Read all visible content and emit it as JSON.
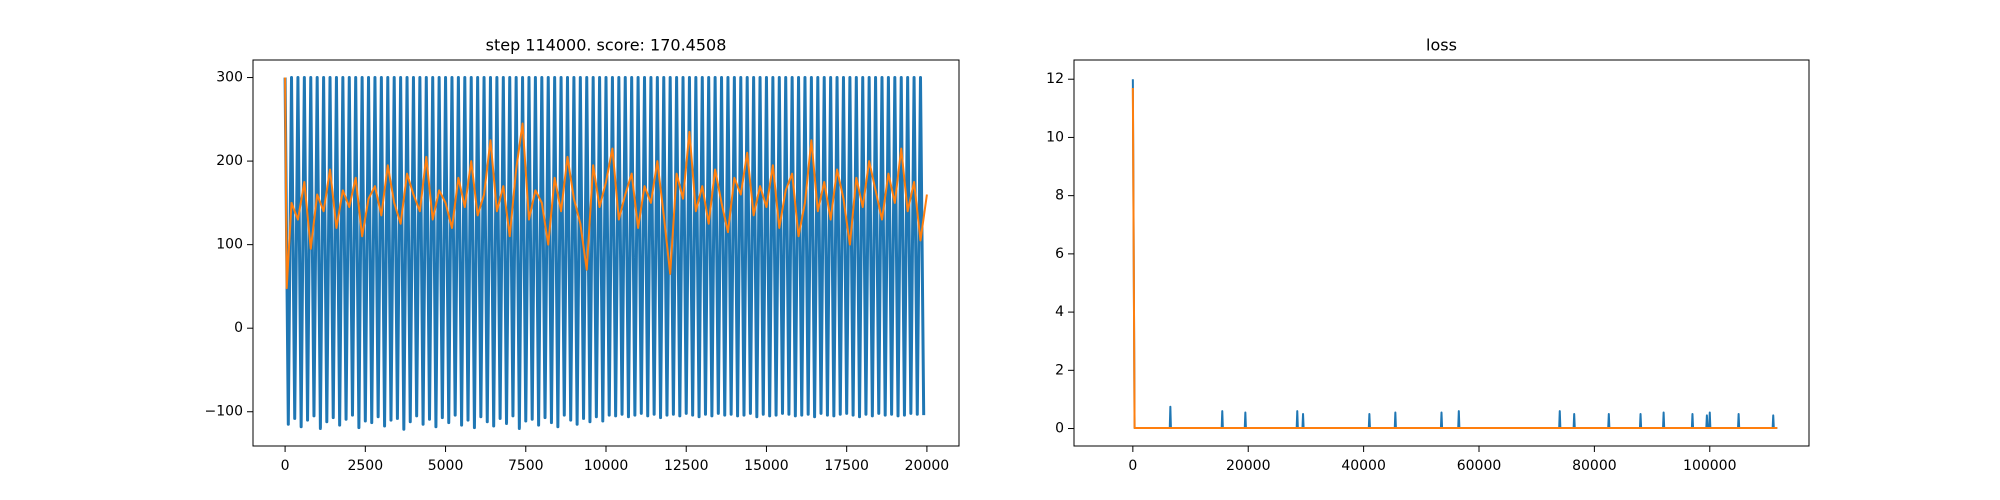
{
  "chart_data": [
    {
      "type": "line",
      "title": "step 114000. score: 170.4508",
      "xlim": [
        -1000,
        21000
      ],
      "ylim": [
        -141,
        321
      ],
      "xticks": [
        0,
        2500,
        5000,
        7500,
        10000,
        12500,
        15000,
        17500,
        20000
      ],
      "yticks": [
        {
          "value": -100,
          "label": "−100"
        },
        0,
        100,
        200,
        300
      ],
      "series": [
        {
          "color": "#1f77b4",
          "x": [
            0,
            100,
            200,
            300,
            400,
            500,
            600,
            700,
            800,
            900,
            1000,
            1100,
            1200,
            1300,
            1400,
            1500,
            1600,
            1700,
            1800,
            1900,
            2000,
            2100,
            2200,
            2300,
            2400,
            2500,
            2600,
            2700,
            2800,
            2900,
            3000,
            3100,
            3200,
            3300,
            3400,
            3500,
            3600,
            3700,
            3800,
            3900,
            4000,
            4100,
            4200,
            4300,
            4400,
            4500,
            4600,
            4700,
            4800,
            4900,
            5000,
            5100,
            5200,
            5300,
            5400,
            5500,
            5600,
            5700,
            5800,
            5900,
            6000,
            6100,
            6200,
            6300,
            6400,
            6500,
            6600,
            6700,
            6800,
            6900,
            7000,
            7100,
            7200,
            7300,
            7400,
            7500,
            7600,
            7700,
            7800,
            7900,
            8000,
            8100,
            8200,
            8300,
            8400,
            8500,
            8600,
            8700,
            8800,
            8900,
            9000,
            9100,
            9200,
            9300,
            9400,
            9500,
            9600,
            9700,
            9800,
            9900,
            10000,
            10100,
            10200,
            10300,
            10400,
            10500,
            10600,
            10700,
            10800,
            10900,
            11000,
            11100,
            11200,
            11300,
            11400,
            11500,
            11600,
            11700,
            11800,
            11900,
            12000,
            12100,
            12200,
            12300,
            12400,
            12500,
            12600,
            12700,
            12800,
            12900,
            13000,
            13100,
            13200,
            13300,
            13400,
            13500,
            13600,
            13700,
            13800,
            13900,
            14000,
            14100,
            14200,
            14300,
            14400,
            14500,
            14600,
            14700,
            14800,
            14900,
            15000,
            15100,
            15200,
            15300,
            15400,
            15500,
            15600,
            15700,
            15800,
            15900,
            16000,
            16100,
            16200,
            16300,
            16400,
            16500,
            16600,
            16700,
            16800,
            16900,
            17000,
            17100,
            17200,
            17300,
            17400,
            17500,
            17600,
            17700,
            17800,
            17900,
            18000,
            18100,
            18200,
            18300,
            18400,
            18500,
            18600,
            18700,
            18800,
            18900,
            19000,
            19100,
            19200,
            19300,
            19400,
            19500,
            19600,
            19700,
            19800,
            19900
          ],
          "values": [
            300,
            -115,
            300,
            -108,
            300,
            -118,
            300,
            -110,
            300,
            -105,
            300,
            -120,
            300,
            -112,
            300,
            -107,
            300,
            -116,
            300,
            -109,
            300,
            -104,
            300,
            -119,
            300,
            -111,
            300,
            -113,
            300,
            -106,
            300,
            -117,
            300,
            -110,
            300,
            -108,
            300,
            -121,
            300,
            -112,
            300,
            -105,
            300,
            -115,
            300,
            -109,
            300,
            -118,
            300,
            -107,
            300,
            -113,
            300,
            -104,
            300,
            -116,
            300,
            -110,
            300,
            -119,
            300,
            -106,
            300,
            -112,
            300,
            -117,
            300,
            -108,
            300,
            -114,
            300,
            -105,
            300,
            -120,
            300,
            -111,
            300,
            -109,
            300,
            -116,
            300,
            -107,
            300,
            -113,
            300,
            -118,
            300,
            -104,
            300,
            -110,
            300,
            -115,
            300,
            -108,
            300,
            -112,
            300,
            -106,
            300,
            -111,
            300,
            -104,
            300,
            -105,
            300,
            -103,
            300,
            -106,
            300,
            -104,
            300,
            -102,
            300,
            -105,
            300,
            -103,
            300,
            -107,
            300,
            -104,
            300,
            -103,
            300,
            -105,
            300,
            -102,
            300,
            -104,
            300,
            -106,
            300,
            -103,
            300,
            -105,
            300,
            -102,
            300,
            -104,
            300,
            -103,
            300,
            -105,
            300,
            -104,
            300,
            -102,
            300,
            -106,
            300,
            -103,
            300,
            -105,
            300,
            -104,
            300,
            -102,
            300,
            -103,
            300,
            -105,
            300,
            -104,
            300,
            -103,
            300,
            -106,
            300,
            -102,
            300,
            -104,
            300,
            -105,
            300,
            -103,
            300,
            -102,
            300,
            -104,
            300,
            -106,
            300,
            -103,
            300,
            -105,
            300,
            -102,
            300,
            -104,
            300,
            -103,
            300,
            -105,
            300,
            -104,
            300,
            -102,
            300,
            -103,
            300,
            -104
          ]
        },
        {
          "color": "#ff7f0e",
          "x": [
            0,
            50,
            200,
            400,
            600,
            800,
            1000,
            1200,
            1400,
            1600,
            1800,
            2000,
            2200,
            2400,
            2600,
            2800,
            3000,
            3200,
            3400,
            3600,
            3800,
            4000,
            4200,
            4400,
            4600,
            4800,
            5000,
            5200,
            5400,
            5600,
            5800,
            6000,
            6200,
            6400,
            6600,
            6800,
            7000,
            7200,
            7400,
            7600,
            7800,
            8000,
            8200,
            8400,
            8600,
            8800,
            9000,
            9200,
            9400,
            9600,
            9800,
            10000,
            10200,
            10400,
            10600,
            10800,
            11000,
            11200,
            11400,
            11600,
            11800,
            12000,
            12200,
            12400,
            12600,
            12800,
            13000,
            13200,
            13400,
            13600,
            13800,
            14000,
            14200,
            14400,
            14600,
            14800,
            15000,
            15200,
            15400,
            15600,
            15800,
            16000,
            16200,
            16400,
            16600,
            16800,
            17000,
            17200,
            17400,
            17600,
            17800,
            18000,
            18200,
            18400,
            18600,
            18800,
            19000,
            19200,
            19400,
            19600,
            19800,
            20000
          ],
          "values": [
            300,
            48,
            150,
            130,
            175,
            95,
            160,
            140,
            190,
            120,
            165,
            145,
            180,
            110,
            155,
            170,
            135,
            195,
            150,
            125,
            185,
            160,
            140,
            205,
            130,
            165,
            150,
            120,
            180,
            145,
            200,
            135,
            160,
            225,
            140,
            170,
            110,
            190,
            245,
            130,
            165,
            150,
            100,
            180,
            140,
            205,
            155,
            125,
            70,
            195,
            145,
            175,
            215,
            130,
            160,
            185,
            120,
            170,
            150,
            200,
            135,
            65,
            185,
            155,
            235,
            140,
            170,
            125,
            190,
            150,
            115,
            180,
            160,
            210,
            135,
            170,
            145,
            195,
            120,
            165,
            185,
            110,
            150,
            225,
            140,
            175,
            130,
            190,
            155,
            100,
            180,
            145,
            200,
            165,
            130,
            185,
            150,
            215,
            140,
            175,
            105,
            160
          ]
        }
      ]
    },
    {
      "type": "line",
      "title": "loss",
      "xlim": [
        -10200,
        117200
      ],
      "ylim": [
        -0.6,
        12.66
      ],
      "xticks": [
        0,
        20000,
        40000,
        60000,
        80000,
        100000
      ],
      "yticks": [
        0,
        2,
        4,
        6,
        8,
        10,
        12
      ],
      "series": [
        {
          "color": "#1f77b4",
          "x": [
            0,
            300,
            6400,
            6500,
            6600,
            15400,
            15500,
            15600,
            19400,
            19500,
            19600,
            28400,
            28500,
            28600,
            29400,
            29500,
            29600,
            40900,
            41000,
            41100,
            45400,
            45500,
            45600,
            53400,
            53500,
            53600,
            56400,
            56500,
            56600,
            73900,
            74000,
            74100,
            76400,
            76500,
            76600,
            82400,
            82500,
            82600,
            87900,
            88000,
            88100,
            91900,
            92000,
            92100,
            96900,
            97000,
            97100,
            99400,
            99500,
            99600,
            99900,
            100000,
            100100,
            104900,
            105000,
            105100,
            110900,
            111000,
            111100,
            111700
          ],
          "values": [
            12.0,
            0.02,
            0.02,
            0.75,
            0.02,
            0.02,
            0.6,
            0.02,
            0.02,
            0.55,
            0.02,
            0.02,
            0.6,
            0.02,
            0.02,
            0.5,
            0.02,
            0.02,
            0.5,
            0.02,
            0.02,
            0.55,
            0.02,
            0.02,
            0.55,
            0.02,
            0.02,
            0.6,
            0.02,
            0.02,
            0.6,
            0.02,
            0.02,
            0.5,
            0.02,
            0.02,
            0.5,
            0.02,
            0.02,
            0.5,
            0.02,
            0.02,
            0.55,
            0.02,
            0.02,
            0.5,
            0.02,
            0.02,
            0.45,
            0.02,
            0.02,
            0.55,
            0.02,
            0.02,
            0.5,
            0.02,
            0.02,
            0.45,
            0.02,
            0.02
          ]
        },
        {
          "color": "#ff7f0e",
          "x": [
            0,
            300,
            111700
          ],
          "values": [
            11.7,
            0.02,
            0.02
          ]
        }
      ]
    }
  ]
}
